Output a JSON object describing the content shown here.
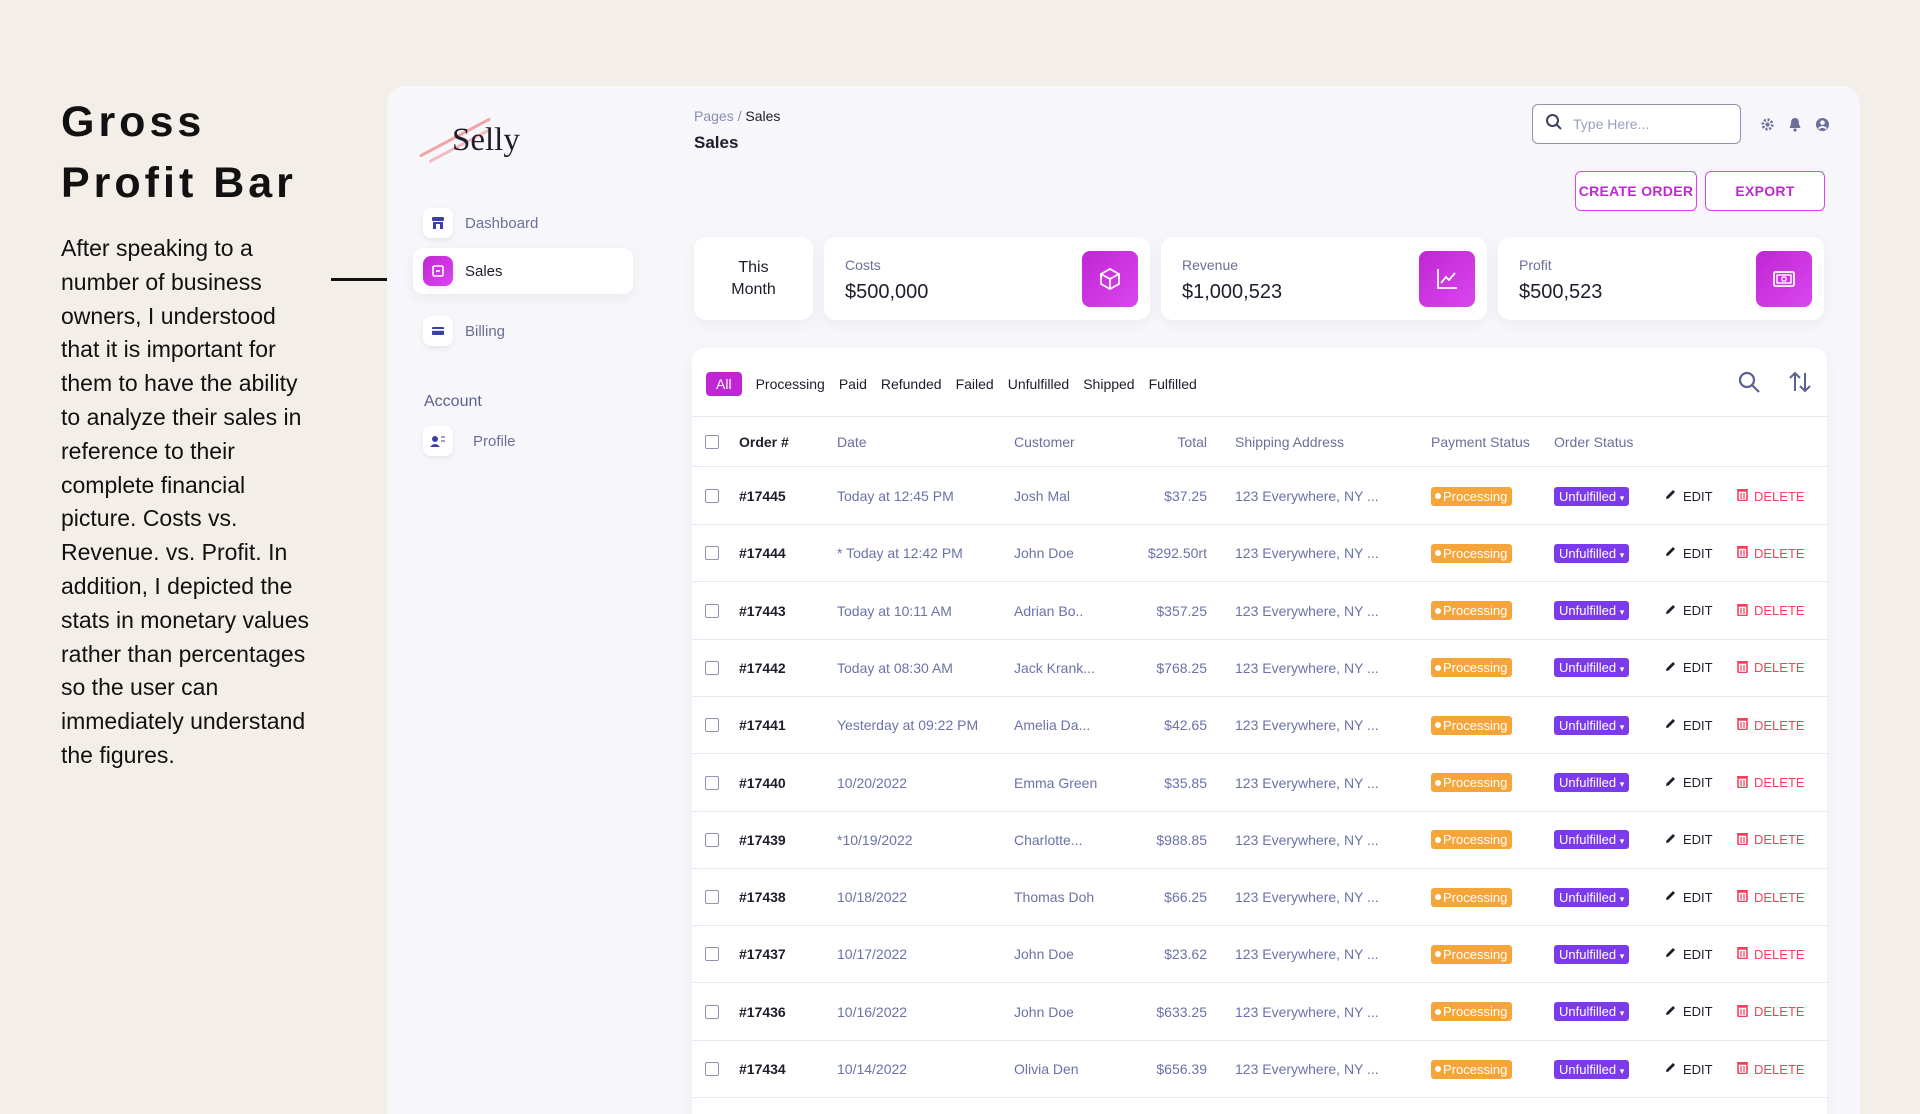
{
  "caption": {
    "title_line1": "Gross",
    "title_line2": "Profit Bar",
    "body": "After speaking to a number of business owners, I understood that it is important for them to have the ability to analyze their sales in reference to their complete financial picture. Costs vs. Revenue. vs. Profit. In addition, I depicted the stats in monetary values rather than percentages so the user can immediately understand the figures."
  },
  "app": {
    "logo": "Selly",
    "nav": [
      {
        "label": "Dashboard",
        "icon": "store-icon"
      },
      {
        "label": "Sales",
        "icon": "sales-icon",
        "active": true
      },
      {
        "label": "Billing",
        "icon": "card-icon"
      }
    ],
    "account_label": "Account",
    "profile_label": "Profile",
    "breadcrumb_root": "Pages",
    "breadcrumb_sep": "/",
    "breadcrumb_current": "Sales",
    "page_title": "Sales",
    "search_placeholder": "Type Here...",
    "create_order_label": "CREATE ORDER",
    "export_label": "EXPORT"
  },
  "stats": {
    "period_line1": "This",
    "period_line2": "Month",
    "costs_label": "Costs",
    "costs_value": "$500,000",
    "revenue_label": "Revenue",
    "revenue_value": "$1,000,523",
    "profit_label": "Profit",
    "profit_value": "$500,523",
    "accent": "#c026d3"
  },
  "filters": [
    "All",
    "Processing",
    "Paid",
    "Refunded",
    "Failed",
    "Unfulfilled",
    "Shipped",
    "Fulfilled"
  ],
  "columns": {
    "order": "Order #",
    "date": "Date",
    "customer": "Customer",
    "total": "Total",
    "address": "Shipping Address",
    "payment": "Payment Status",
    "status": "Order Status"
  },
  "row_actions": {
    "edit": "EDIT",
    "delete": "DELETE"
  },
  "orders": [
    {
      "id": "#17445",
      "date": "Today at 12:45 PM",
      "customer": "Josh Mal",
      "total": "$37.25",
      "address": "123 Everywhere, NY ...",
      "payment": "Processing",
      "status": "Unfulfilled"
    },
    {
      "id": "#17444",
      "date": "* Today at 12:42 PM",
      "customer": "John Doe",
      "total": "$292.50rt",
      "address": "123 Everywhere, NY ...",
      "payment": "Processing",
      "status": "Unfulfilled"
    },
    {
      "id": "#17443",
      "date": "Today at 10:11 AM",
      "customer": "Adrian Bo..",
      "total": "$357.25",
      "address": "123 Everywhere, NY ...",
      "payment": "Processing",
      "status": "Unfulfilled"
    },
    {
      "id": "#17442",
      "date": "Today at 08:30 AM",
      "customer": "Jack Krank...",
      "total": "$768.25",
      "address": "123 Everywhere, NY ...",
      "payment": "Processing",
      "status": "Unfulfilled"
    },
    {
      "id": "#17441",
      "date": "Yesterday at 09:22 PM",
      "customer": "Amelia Da...",
      "total": "$42.65",
      "address": "123 Everywhere, NY ...",
      "payment": "Processing",
      "status": "Unfulfilled"
    },
    {
      "id": "#17440",
      "date": "10/20/2022",
      "customer": "Emma Green",
      "total": "$35.85",
      "address": "123 Everywhere, NY ...",
      "payment": "Processing",
      "status": "Unfulfilled"
    },
    {
      "id": "#17439",
      "date": "*10/19/2022",
      "customer": "Charlotte...",
      "total": "$988.85",
      "address": "123 Everywhere, NY ...",
      "payment": "Processing",
      "status": "Unfulfilled"
    },
    {
      "id": "#17438",
      "date": "10/18/2022",
      "customer": "Thomas Doh",
      "total": "$66.25",
      "address": "123 Everywhere, NY ...",
      "payment": "Processing",
      "status": "Unfulfilled"
    },
    {
      "id": "#17437",
      "date": "10/17/2022",
      "customer": "John Doe",
      "total": "$23.62",
      "address": "123 Everywhere, NY ...",
      "payment": "Processing",
      "status": "Unfulfilled"
    },
    {
      "id": "#17436",
      "date": "10/16/2022",
      "customer": "John Doe",
      "total": "$633.25",
      "address": "123 Everywhere, NY ...",
      "payment": "Processing",
      "status": "Unfulfilled"
    },
    {
      "id": "#17434",
      "date": "10/14/2022",
      "customer": "Olivia Den",
      "total": "$656.39",
      "address": "123 Everywhere, NY ...",
      "payment": "Processing",
      "status": "Unfulfilled"
    }
  ]
}
